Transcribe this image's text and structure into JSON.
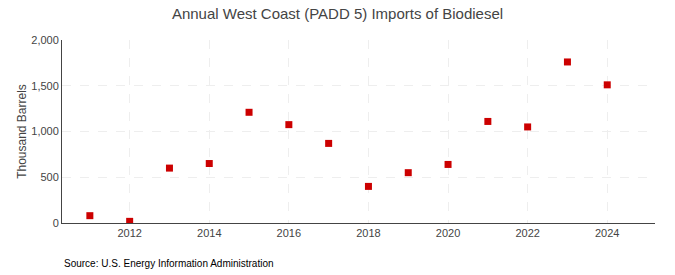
{
  "chart_data": {
    "type": "scatter",
    "title": "Annual West Coast (PADD 5) Imports of Biodiesel",
    "ylabel": "Thousand Barrels",
    "annotation": "Source: U.S. Energy Information Administration",
    "x": [
      2011,
      2012,
      2013,
      2014,
      2015,
      2016,
      2017,
      2018,
      2019,
      2020,
      2021,
      2022,
      2023,
      2024
    ],
    "values": [
      80,
      18,
      600,
      650,
      1210,
      1075,
      870,
      400,
      550,
      640,
      1110,
      1050,
      1760,
      1510
    ],
    "color": "#cc0000",
    "marker": "square",
    "xlim": [
      2010.3,
      2025.2
    ],
    "xticks": [
      2012,
      2014,
      2016,
      2018,
      2020,
      2022,
      2024
    ],
    "ylim": [
      0,
      2000
    ],
    "yticks": [
      0,
      500,
      {
        "value": 1000,
        "label": "1,000"
      },
      {
        "value": 1500,
        "label": "1,500"
      },
      {
        "value": 2000,
        "label": "2,000"
      }
    ],
    "grid": true
  }
}
